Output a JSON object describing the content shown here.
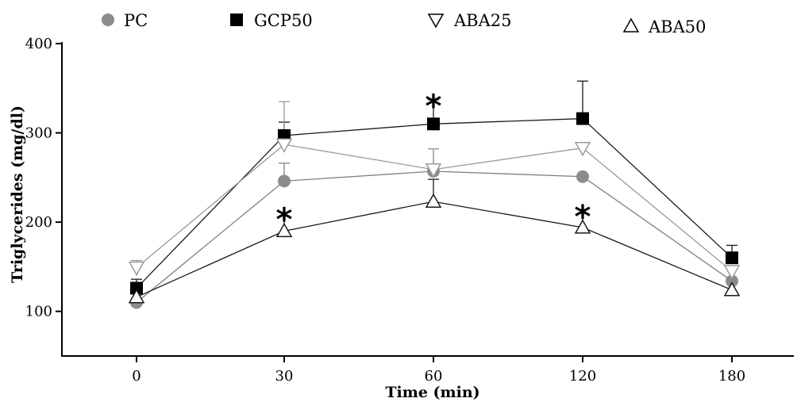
{
  "chart_data": {
    "type": "line",
    "xlabel": "Time (min)",
    "ylabel": "Triglycerides (mg/dl)",
    "x": [
      "0",
      "30",
      "60",
      "120",
      "180"
    ],
    "ylim": [
      50,
      400
    ],
    "yticks": [
      100,
      200,
      300,
      400
    ],
    "grid": false,
    "legend_position": "top",
    "series": [
      {
        "name": "PC",
        "marker": "circle",
        "color": "#808080",
        "marker_fill": "#8c8c8c",
        "values": [
          110,
          246,
          257,
          251,
          134
        ],
        "errors": [
          0,
          20,
          25,
          0,
          0
        ]
      },
      {
        "name": "GCP50",
        "marker": "square",
        "color": "#1a1a1a",
        "marker_fill": "#000000",
        "values": [
          126,
          297,
          310,
          316,
          160
        ],
        "errors": [
          10,
          15,
          27,
          42,
          14
        ]
      },
      {
        "name": "ABA25",
        "marker": "triangle-down",
        "color": "#9a9a9a",
        "marker_fill": "#ffffff",
        "values": [
          149,
          287,
          259,
          283,
          145
        ],
        "errors": [
          8,
          48,
          23,
          0,
          0
        ]
      },
      {
        "name": "ABA50",
        "marker": "triangle-up",
        "color": "#1a1a1a",
        "marker_fill": "#ffffff",
        "values": [
          116,
          190,
          223,
          194,
          124
        ],
        "errors": [
          0,
          17,
          25,
          16,
          0
        ]
      }
    ],
    "annotations": [
      {
        "text": "*",
        "x": "30",
        "y": 205
      },
      {
        "text": "*",
        "x": "60",
        "y": 332
      },
      {
        "text": "*",
        "x": "120",
        "y": 208
      }
    ]
  }
}
